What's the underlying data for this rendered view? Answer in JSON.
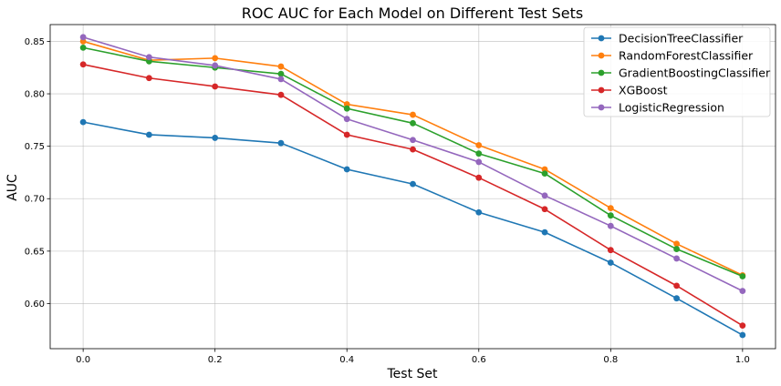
{
  "chart_data": {
    "type": "line",
    "title": "ROC AUC for Each Model on Different Test Sets",
    "xlabel": "Test Set",
    "ylabel": "AUC",
    "x": [
      0.0,
      0.1,
      0.2,
      0.3,
      0.4,
      0.5,
      0.6,
      0.7,
      0.8,
      0.9,
      1.0
    ],
    "xlim": [
      -0.05,
      1.05
    ],
    "ylim": [
      0.557,
      0.866
    ],
    "xticks": [
      "0.0",
      "0.2",
      "0.4",
      "0.6",
      "0.8",
      "1.0"
    ],
    "yticks": [
      "0.60",
      "0.65",
      "0.70",
      "0.75",
      "0.80",
      "0.85"
    ],
    "grid": true,
    "legend_position": "top-right",
    "series": [
      {
        "name": "DecisionTreeClassifier",
        "color": "#1f77b4",
        "values": [
          0.773,
          0.761,
          0.758,
          0.753,
          0.728,
          0.714,
          0.687,
          0.668,
          0.639,
          0.605,
          0.57
        ]
      },
      {
        "name": "RandomForestClassifier",
        "color": "#ff7f0e",
        "values": [
          0.85,
          0.832,
          0.834,
          0.826,
          0.79,
          0.78,
          0.751,
          0.728,
          0.691,
          0.657,
          0.627
        ]
      },
      {
        "name": "GradientBoostingClassifier",
        "color": "#2ca02c",
        "values": [
          0.844,
          0.831,
          0.825,
          0.819,
          0.786,
          0.772,
          0.743,
          0.724,
          0.684,
          0.652,
          0.626
        ]
      },
      {
        "name": "XGBoost",
        "color": "#d62728",
        "values": [
          0.828,
          0.815,
          0.807,
          0.799,
          0.761,
          0.747,
          0.72,
          0.69,
          0.651,
          0.617,
          0.579
        ]
      },
      {
        "name": "LogisticRegression",
        "color": "#9467bd",
        "values": [
          0.854,
          0.835,
          0.827,
          0.814,
          0.776,
          0.756,
          0.735,
          0.703,
          0.674,
          0.643,
          0.612
        ]
      }
    ]
  }
}
